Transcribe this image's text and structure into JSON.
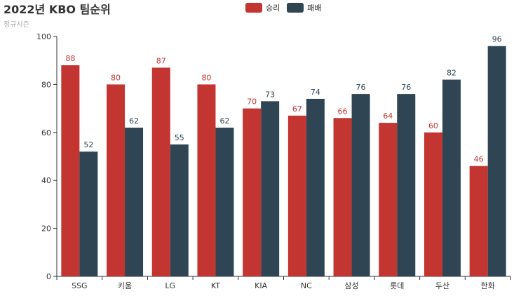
{
  "title": "2022년 KBO 팀순위",
  "subtitle": "정규시즌",
  "colors": {
    "win": "#c23531",
    "loss": "#2f4554",
    "axis": "#333333"
  },
  "chart_data": {
    "type": "bar",
    "categories": [
      "SSG",
      "키움",
      "LG",
      "KT",
      "KIA",
      "NC",
      "삼성",
      "롯데",
      "두산",
      "한화"
    ],
    "series": [
      {
        "name": "승리",
        "values": [
          88,
          80,
          87,
          80,
          70,
          67,
          66,
          64,
          60,
          46
        ]
      },
      {
        "name": "패배",
        "values": [
          52,
          62,
          55,
          62,
          73,
          74,
          76,
          76,
          82,
          96
        ]
      }
    ],
    "ylim": [
      0,
      100
    ],
    "yticks": [
      0,
      20,
      40,
      60,
      80,
      100
    ],
    "grid": false,
    "legend_position": "top-center"
  }
}
